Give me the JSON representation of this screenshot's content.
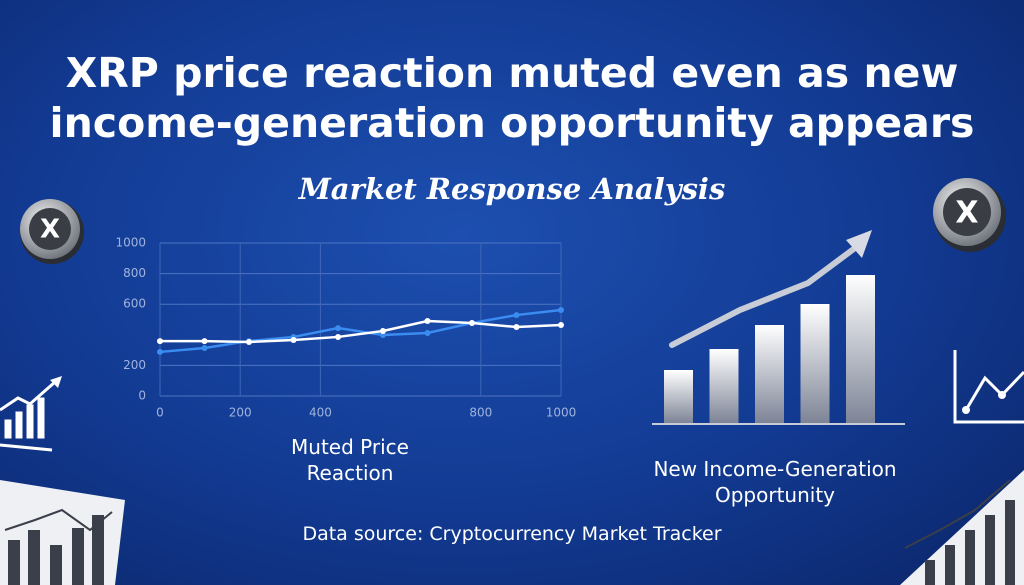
{
  "headline": [
    "XRP price reaction muted even as new",
    "income-generation opportunity appears"
  ],
  "subtitle": "Market Response Analysis",
  "source": "Data source: Cryptocurrency Market Tracker",
  "chart_data": [
    {
      "type": "line",
      "title": "Muted Price Reaction",
      "xlim": [
        0,
        1000
      ],
      "xticks": [
        0,
        200,
        400,
        800,
        1000
      ],
      "ylim": [
        0,
        1000
      ],
      "yticks": [
        0,
        200,
        600,
        800,
        1000
      ],
      "grid": true,
      "series": [
        {
          "color": "#3b8cf0",
          "x": [
            0,
            111,
            222,
            333,
            444,
            556,
            667,
            778,
            889,
            1000
          ],
          "values": [
            288,
            314,
            359,
            386,
            444,
            399,
            412,
            477,
            529,
            562
          ]
        },
        {
          "color": "#ffffff",
          "x": [
            0,
            111,
            222,
            333,
            444,
            556,
            667,
            778,
            889,
            1000
          ],
          "values": [
            359,
            359,
            353,
            366,
            386,
            425,
            490,
            477,
            451,
            464
          ]
        }
      ]
    },
    {
      "type": "bar",
      "title": "New Income-Generation Opportunity",
      "values": [
        53,
        74,
        98,
        119,
        148
      ],
      "color": "#d8dbe3"
    }
  ]
}
